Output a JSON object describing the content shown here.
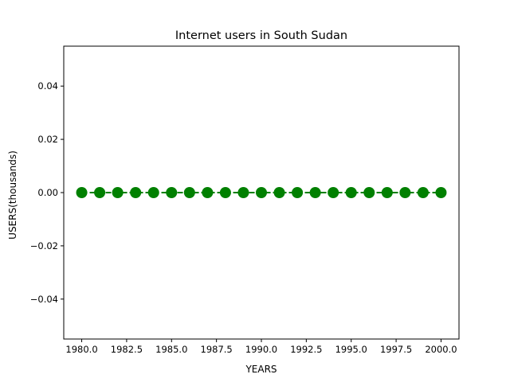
{
  "chart_data": {
    "type": "line",
    "title": "Internet users in South Sudan",
    "xlabel": "YEARS",
    "ylabel": "USERS(thousands)",
    "x": [
      1980,
      1981,
      1982,
      1983,
      1984,
      1985,
      1986,
      1987,
      1988,
      1989,
      1990,
      1991,
      1992,
      1993,
      1994,
      1995,
      1996,
      1997,
      1998,
      1999,
      2000
    ],
    "series": [
      {
        "values": [
          0,
          0,
          0,
          0,
          0,
          0,
          0,
          0,
          0,
          0,
          0,
          0,
          0,
          0,
          0,
          0,
          0,
          0,
          0,
          0,
          0
        ],
        "color": "#008000",
        "line_style": "dashed",
        "marker": "circle"
      }
    ],
    "xlim": [
      1979,
      2001
    ],
    "ylim": [
      -0.055,
      0.055
    ],
    "xticks": [
      "1980.0",
      "1982.5",
      "1985.0",
      "1987.5",
      "1990.0",
      "1992.5",
      "1995.0",
      "1997.5",
      "2000.0"
    ],
    "yticks": [
      "−0.04",
      "−0.02",
      "0.00",
      "0.02",
      "0.04"
    ],
    "grid": false,
    "legend": "none"
  }
}
